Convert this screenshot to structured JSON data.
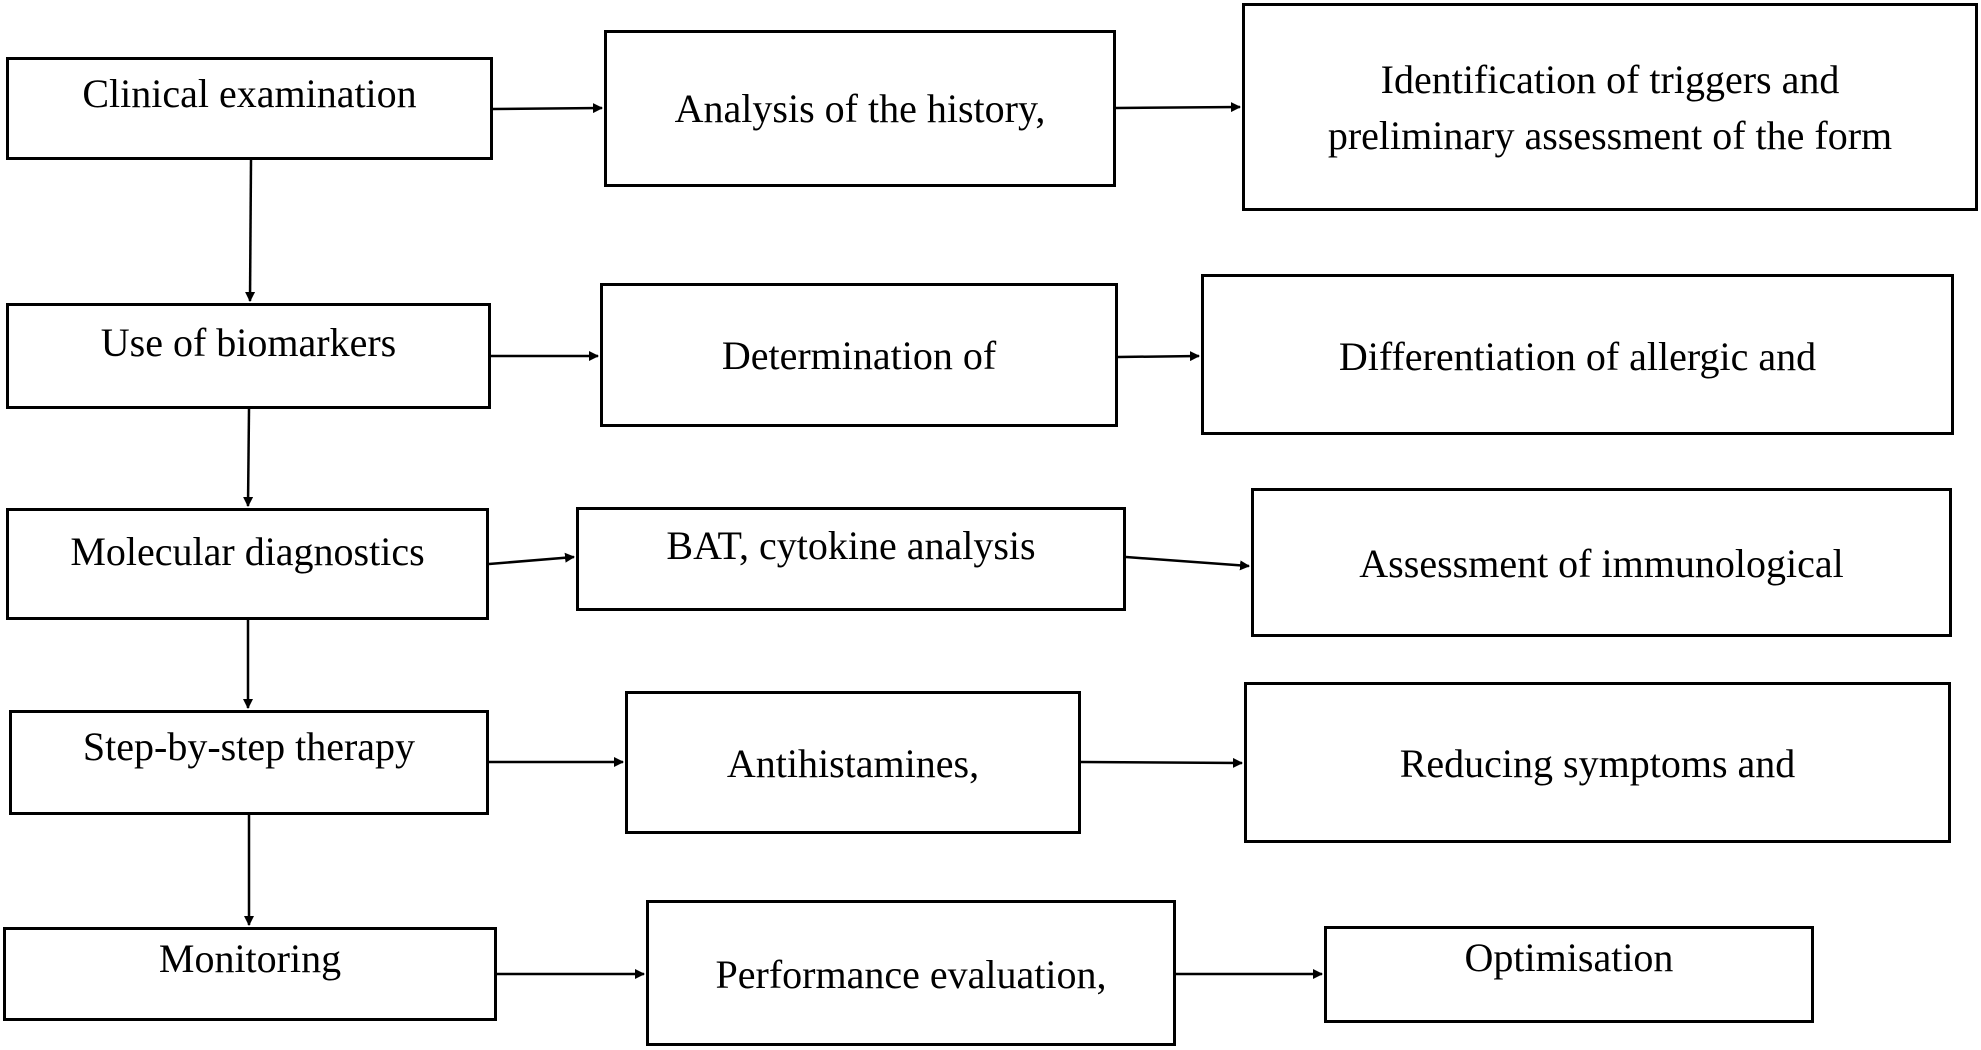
{
  "rows": [
    {
      "step": "Clinical examination",
      "action": "Analysis of the history,",
      "outcome_lines": [
        "Identification of triggers and",
        "preliminary assessment of the form"
      ]
    },
    {
      "step": "Use of biomarkers",
      "action": "Determination of",
      "outcome_lines": [
        "Differentiation of allergic and"
      ]
    },
    {
      "step": "Molecular diagnostics",
      "action": "BAT, cytokine analysis",
      "outcome_lines": [
        "Assessment of immunological"
      ]
    },
    {
      "step": "Step-by-step therapy",
      "action": "Antihistamines,",
      "outcome_lines": [
        "Reducing symptoms and"
      ]
    },
    {
      "step": "Monitoring",
      "action": "Performance evaluation,",
      "outcome_lines": [
        "Optimisation"
      ]
    }
  ]
}
